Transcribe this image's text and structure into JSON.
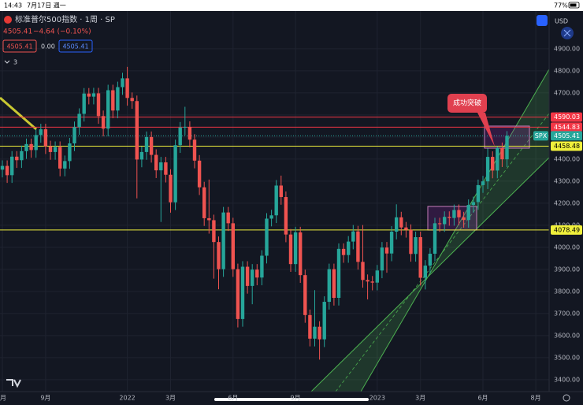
{
  "status_bar": {
    "time": "14:43",
    "date": "7月17日 週一",
    "battery": "77%"
  },
  "header": {
    "symbol": "标准普尔500指数 · 1周 · SP",
    "price": "4505.41",
    "change": "−4.64 (−0.10%)",
    "boxes": [
      "4505.41",
      "0.00",
      "4505.41"
    ],
    "indicators": "3",
    "currency": "USD"
  },
  "chart_data": {
    "type": "candlestick",
    "up_color": "#26a69a",
    "down_color": "#ef5350",
    "grid": true,
    "categories": [
      "月",
      null,
      null,
      null,
      null,
      null,
      null,
      null,
      null,
      "9月",
      null,
      null,
      null,
      null,
      null,
      null,
      null,
      null,
      null,
      null,
      null,
      null,
      null,
      null,
      null,
      null,
      "2022",
      null,
      null,
      null,
      null,
      null,
      null,
      null,
      null,
      "3月",
      null,
      null,
      null,
      null,
      null,
      null,
      null,
      null,
      null,
      null,
      null,
      null,
      "6月",
      null,
      null,
      null,
      null,
      null,
      null,
      null,
      null,
      null,
      null,
      null,
      null,
      "9月",
      null,
      null,
      null,
      null,
      null,
      null,
      null,
      null,
      null,
      null,
      null,
      null,
      null,
      null,
      null,
      null,
      "2023",
      null,
      null,
      null,
      null,
      null,
      null,
      null,
      null,
      "3月",
      null,
      null,
      null,
      null,
      null,
      null,
      null,
      null,
      null,
      null,
      null,
      null,
      "6月",
      null,
      null,
      null,
      null,
      null,
      null,
      null,
      null,
      null,
      null,
      "8月"
    ],
    "open": [
      4352,
      4369,
      4327,
      4411,
      4395,
      4436,
      4468,
      4441,
      4509,
      4535,
      4458,
      4432,
      4455,
      4357,
      4391,
      4471,
      4545,
      4605,
      4697,
      4683,
      4698,
      4595,
      4538,
      4712,
      4620,
      4726,
      4766,
      4677,
      4663,
      4398,
      4432,
      4500,
      4419,
      4349,
      4385,
      4329,
      4204,
      4463,
      4543,
      4546,
      4488,
      4393,
      4272,
      4132,
      4123,
      4024,
      3901,
      4158,
      4109,
      3901,
      3675,
      3912,
      3825,
      3899,
      3863,
      3962,
      4130,
      4145,
      4280,
      4228,
      4058,
      3924,
      4068,
      3874,
      3693,
      3586,
      3640,
      3583,
      3753,
      3901,
      3771,
      3993,
      3965,
      4026,
      4072,
      3934,
      3852,
      3845,
      3840,
      3895,
      3999,
      3972,
      4071,
      4136,
      4090,
      4079,
      3970,
      4046,
      3862,
      3917,
      3971,
      4109,
      4105,
      4138,
      4133,
      4169,
      4136,
      4124,
      4192,
      4205,
      4282,
      4299,
      4410,
      4348,
      4450,
      4399,
      null,
      null,
      null,
      null,
      null,
      null
    ],
    "high": [
      4394,
      4394,
      4436,
      4436,
      4461,
      4493,
      4493,
      4534,
      4560,
      4560,
      4483,
      4480,
      4480,
      4416,
      4496,
      4570,
      4630,
      4722,
      4722,
      4723,
      4723,
      4620,
      4737,
      4737,
      4751,
      4791,
      4818,
      4702,
      4688,
      4457,
      4525,
      4525,
      4444,
      4410,
      4410,
      4354,
      4488,
      4568,
      4637,
      4571,
      4513,
      4418,
      4297,
      4307,
      4148,
      4049,
      4183,
      4183,
      4134,
      3926,
      3937,
      3937,
      3924,
      3924,
      3987,
      4155,
      4170,
      4305,
      4325,
      4253,
      4083,
      4093,
      4093,
      3899,
      3718,
      3806,
      3665,
      3778,
      3926,
      3926,
      4018,
      4018,
      4051,
      4101,
      4097,
      4101,
      3877,
      3870,
      3920,
      4024,
      4024,
      4096,
      4195,
      4161,
      4115,
      4104,
      4071,
      4071,
      3942,
      3996,
      4134,
      4134,
      4163,
      4163,
      4194,
      4194,
      4161,
      4217,
      4230,
      4307,
      4324,
      4448,
      4435,
      4458,
      4475,
      4527,
      null,
      null,
      null,
      null,
      null,
      null
    ],
    "low": [
      4317,
      4292,
      4292,
      4360,
      4360,
      4401,
      4406,
      4406,
      4474,
      4423,
      4397,
      4397,
      4322,
      4322,
      4356,
      4436,
      4510,
      4570,
      4648,
      4648,
      4560,
      4503,
      4503,
      4585,
      4585,
      4691,
      4642,
      4628,
      4222,
      4363,
      4397,
      4384,
      4314,
      4115,
      4294,
      4157,
      4169,
      4428,
      4508,
      4453,
      4358,
      4237,
      4097,
      4062,
      3858,
      3810,
      3866,
      4074,
      3866,
      3637,
      3640,
      3790,
      3742,
      3828,
      3828,
      3927,
      4095,
      4110,
      4193,
      4023,
      3889,
      3889,
      3839,
      3658,
      3551,
      3551,
      3491,
      3548,
      3718,
      3736,
      3736,
      3930,
      3930,
      3991,
      3899,
      3817,
      3764,
      3805,
      3805,
      3860,
      3885,
      3937,
      4036,
      4055,
      4044,
      3935,
      3935,
      3827,
      3809,
      3882,
      3936,
      4070,
      4070,
      4098,
      4098,
      4101,
      4089,
      4089,
      4157,
      4170,
      4247,
      4264,
      4313,
      4313,
      4364,
      4364,
      null,
      null,
      null,
      null,
      null,
      null
    ],
    "close": [
      4369,
      4327,
      4411,
      4395,
      4436,
      4468,
      4441,
      4509,
      4535,
      4458,
      4432,
      4455,
      4357,
      4391,
      4471,
      4545,
      4605,
      4697,
      4683,
      4698,
      4595,
      4538,
      4712,
      4620,
      4726,
      4766,
      4677,
      4663,
      4398,
      4432,
      4500,
      4419,
      4349,
      4385,
      4329,
      4204,
      4463,
      4543,
      4546,
      4488,
      4393,
      4272,
      4132,
      4123,
      4024,
      3901,
      4158,
      4109,
      3901,
      3675,
      3912,
      3825,
      3899,
      3863,
      3962,
      4130,
      4145,
      4280,
      4228,
      4058,
      3924,
      4068,
      3874,
      3693,
      3586,
      3640,
      3583,
      3753,
      3901,
      3771,
      3993,
      3965,
      4026,
      4072,
      3934,
      3852,
      3845,
      3840,
      3895,
      3999,
      3972,
      4071,
      4136,
      4090,
      4079,
      3970,
      4046,
      3862,
      3917,
      3971,
      4109,
      4105,
      4138,
      4133,
      4169,
      4136,
      4124,
      4192,
      4205,
      4282,
      4299,
      4410,
      4348,
      4450,
      4399,
      4505.41,
      null,
      null,
      null,
      null,
      null,
      null
    ],
    "ylim": [
      3346,
      5021
    ],
    "yticks": [
      {
        "value": 3400,
        "label": "3400.00"
      },
      {
        "value": 3500,
        "label": "3500.00"
      },
      {
        "value": 3600,
        "label": "3600.00"
      },
      {
        "value": 3700,
        "label": "3700.00"
      },
      {
        "value": 3800,
        "label": "3800.00"
      },
      {
        "value": 3900,
        "label": "3900.00"
      },
      {
        "value": 4000,
        "label": "4000.00"
      },
      {
        "value": 4100,
        "label": "4100.00"
      },
      {
        "value": 4200,
        "label": "4200.00"
      },
      {
        "value": 4300,
        "label": "4300.00"
      },
      {
        "value": 4400,
        "label": "4400.00"
      },
      {
        "value": 4500,
        "label": "4500.00"
      },
      {
        "value": 4600,
        "label": "4600.00"
      },
      {
        "value": 4700,
        "label": "4700.00"
      },
      {
        "value": 4800,
        "label": "4800.00"
      },
      {
        "value": 4900,
        "label": "4900.00"
      }
    ],
    "price_lines": [
      {
        "value": 4590.03,
        "color": "#f23645",
        "text_color": "#ffffff"
      },
      {
        "value": 4544.83,
        "color": "#f23645",
        "text_color": "#ffffff"
      },
      {
        "value": 4505.41,
        "color": "#26a69a",
        "text_color": "#ffffff",
        "dash": true,
        "tag": "SPX"
      },
      {
        "value": 4458.48,
        "color": "#f0f03c",
        "text_color": "#000000"
      },
      {
        "value": 4078.49,
        "color": "#f0f03c",
        "text_color": "#000000"
      }
    ],
    "annotation": "成功突破"
  }
}
